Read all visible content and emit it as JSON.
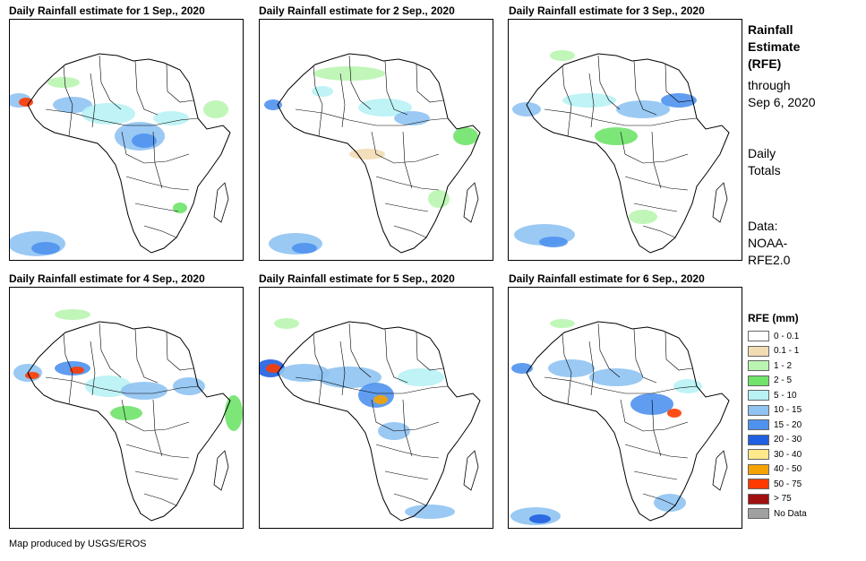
{
  "panels": [
    {
      "title": "Daily Rainfall estimate for 1 Sep., 2020"
    },
    {
      "title": "Daily Rainfall estimate for 2 Sep., 2020"
    },
    {
      "title": "Daily Rainfall estimate for 3 Sep., 2020"
    },
    {
      "title": "Daily Rainfall estimate for 4 Sep., 2020"
    },
    {
      "title": "Daily Rainfall estimate for 5 Sep., 2020"
    },
    {
      "title": "Daily Rainfall estimate for 6 Sep., 2020"
    }
  ],
  "side": {
    "title_l1": "Rainfall",
    "title_l2": "Estimate",
    "title_l3": "(RFE)",
    "through_l1": "through",
    "through_l2": "Sep 6, 2020",
    "totals_l1": "Daily",
    "totals_l2": "Totals",
    "data_l1": "Data:",
    "data_l2": "NOAA-",
    "data_l3": "RFE2.0"
  },
  "legend": {
    "title": "RFE (mm)",
    "items": [
      {
        "label": "0 - 0.1",
        "color": "#ffffff"
      },
      {
        "label": "0.1 - 1",
        "color": "#f2dcb4"
      },
      {
        "label": "1 - 2",
        "color": "#b9f5b0"
      },
      {
        "label": "2 - 5",
        "color": "#6fe36a"
      },
      {
        "label": "5 - 10",
        "color": "#b8f2f5"
      },
      {
        "label": "10 - 15",
        "color": "#8fc3f2"
      },
      {
        "label": "15 - 20",
        "color": "#4f92ee"
      },
      {
        "label": "20 - 30",
        "color": "#1f5fe0"
      },
      {
        "label": "30 - 40",
        "color": "#ffe98a"
      },
      {
        "label": "40 - 50",
        "color": "#f5a300"
      },
      {
        "label": "50 - 75",
        "color": "#ff3b00"
      },
      {
        "label": "> 75",
        "color": "#a01010"
      },
      {
        "label": "No Data",
        "color": "#a0a0a0"
      }
    ]
  },
  "footer": "Map produced by USGS/EROS"
}
